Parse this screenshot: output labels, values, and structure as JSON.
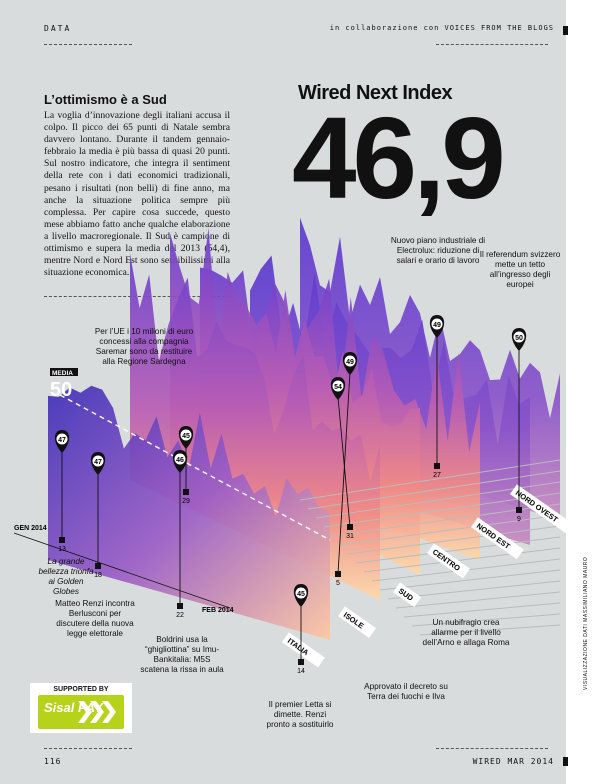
{
  "header": {
    "section": "DATA",
    "collab": "in collaborazione con VOICES FROM THE BLOGS"
  },
  "article": {
    "title": "L’ottimismo è a Sud",
    "body": "La voglia d’innovazione degli italiani accusa il colpo. Il picco dei 65 punti di Natale sembra davvero lontano. Durante il tandem gennaio-febbraio la media è più bassa di quasi 20 punti. Sul nostro indicatore, che integra il sentiment della rete con i dati economici tradizionali, pesano i risultati (non belli) di fine anno, ma anche la situazione politica sempre più complessa. Per capire cosa succede, questo mese abbiamo fatto anche qualche elaborazione a livello macroregionale. Il Sud è campione di ottimismo e supera la media del 2013 (54,4), mentre Nord e Nord Est sono sensibilissimi alla situazione economica."
  },
  "index": {
    "title": "Wired Next Index",
    "value": "46,9"
  },
  "chart_data": {
    "type": "area",
    "title": "Wired Next Index",
    "series": [
      {
        "name": "ITALIA"
      },
      {
        "name": "ISOLE"
      },
      {
        "name": "SUD"
      },
      {
        "name": "CENTRO"
      },
      {
        "name": "NORD EST"
      },
      {
        "name": "NORD OVEST"
      }
    ],
    "x_labels": [
      "GEN 2014",
      "FEB 2014"
    ],
    "media_label": "MEDIA",
    "media_value": "50",
    "markers": [
      "47",
      "47",
      "46",
      "45",
      "54",
      "49",
      "49",
      "50",
      "45"
    ],
    "days": [
      "13",
      "18",
      "22",
      "29",
      "31",
      "5",
      "27",
      "9",
      "14"
    ]
  },
  "annotations": {
    "electrolux": "Nuovo piano industriale di Electrolux: riduzione di salari e orario di lavoro",
    "referendum": "Il referendum svizzero mette un tetto all’ingresso degli europei",
    "saremar": "Per l’UE i 10 milioni di euro concessi alla compagnia Saremar sono da restituire alla Regione Sardegna",
    "bellezza": "La grande bellezza trionfa ai Golden Globes",
    "renzi": "Matteo Renzi incontra Berlusconi per discutere della nuova legge elettorale",
    "boldrini": "Boldrini usa la “ghigliottina” su Imu-Bankitalia: M5S scatena la rissa in aula",
    "letta": "Il premier Letta si dimette. Renzi pronto a sostituirlo",
    "terra": "Approvato il decreto su Terra dei fuochi e Ilva",
    "nubifragio": "Un nubifragio crea allarme per il livello dell’Arno e allaga Roma"
  },
  "sponsor": {
    "label": "SUPPORTED BY",
    "brand": "Sisal PAY"
  },
  "footer": {
    "page": "116",
    "issue": "WIRED MAR 2014"
  },
  "credit": "VISUALIZZAZIONE DATI MASSIMILIANO MAURO"
}
